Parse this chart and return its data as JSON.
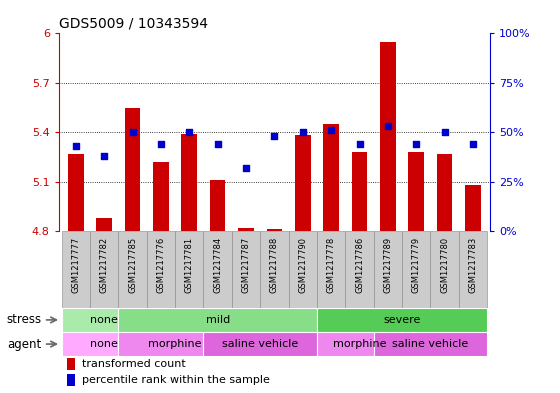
{
  "title": "GDS5009 / 10343594",
  "samples": [
    "GSM1217777",
    "GSM1217782",
    "GSM1217785",
    "GSM1217776",
    "GSM1217781",
    "GSM1217784",
    "GSM1217787",
    "GSM1217788",
    "GSM1217790",
    "GSM1217778",
    "GSM1217786",
    "GSM1217789",
    "GSM1217779",
    "GSM1217780",
    "GSM1217783"
  ],
  "transformed_count": [
    5.27,
    4.88,
    5.55,
    5.22,
    5.39,
    5.11,
    4.82,
    4.81,
    5.38,
    5.45,
    5.28,
    5.95,
    5.28,
    5.27,
    5.08
  ],
  "percentile_rank": [
    43,
    38,
    50,
    44,
    50,
    44,
    32,
    48,
    50,
    51,
    44,
    53,
    44,
    50,
    44
  ],
  "bar_color": "#cc0000",
  "dot_color": "#0000cc",
  "ylim_left": [
    4.8,
    6.0
  ],
  "ylim_right": [
    0,
    100
  ],
  "yticks_left": [
    4.8,
    5.1,
    5.4,
    5.7,
    6.0
  ],
  "yticks_right": [
    0,
    25,
    50,
    75,
    100
  ],
  "ytick_labels_left": [
    "4.8",
    "5.1",
    "5.4",
    "5.7",
    "6"
  ],
  "ytick_labels_right": [
    "0%",
    "25%",
    "50%",
    "75%",
    "100%"
  ],
  "grid_lines": [
    5.1,
    5.4,
    5.7
  ],
  "stress_groups": [
    {
      "label": "none",
      "start": 0,
      "end": 2,
      "color": "#aaeaaa"
    },
    {
      "label": "mild",
      "start": 2,
      "end": 8,
      "color": "#88dd88"
    },
    {
      "label": "severe",
      "start": 9,
      "end": 14,
      "color": "#55cc55"
    }
  ],
  "agent_groups": [
    {
      "label": "none",
      "start": 0,
      "end": 2,
      "color": "#ffaaff"
    },
    {
      "label": "morphine",
      "start": 2,
      "end": 5,
      "color": "#ee88ee"
    },
    {
      "label": "saline vehicle",
      "start": 5,
      "end": 8,
      "color": "#dd66dd"
    },
    {
      "label": "morphine",
      "start": 9,
      "end": 11,
      "color": "#ee88ee"
    },
    {
      "label": "saline vehicle",
      "start": 11,
      "end": 14,
      "color": "#dd66dd"
    }
  ],
  "stress_label": "stress",
  "agent_label": "agent",
  "legend_bar_label": "transformed count",
  "legend_dot_label": "percentile rank within the sample",
  "tick_bg_color": "#cccccc",
  "fig_bg_color": "#ffffff",
  "border_color": "#888888"
}
